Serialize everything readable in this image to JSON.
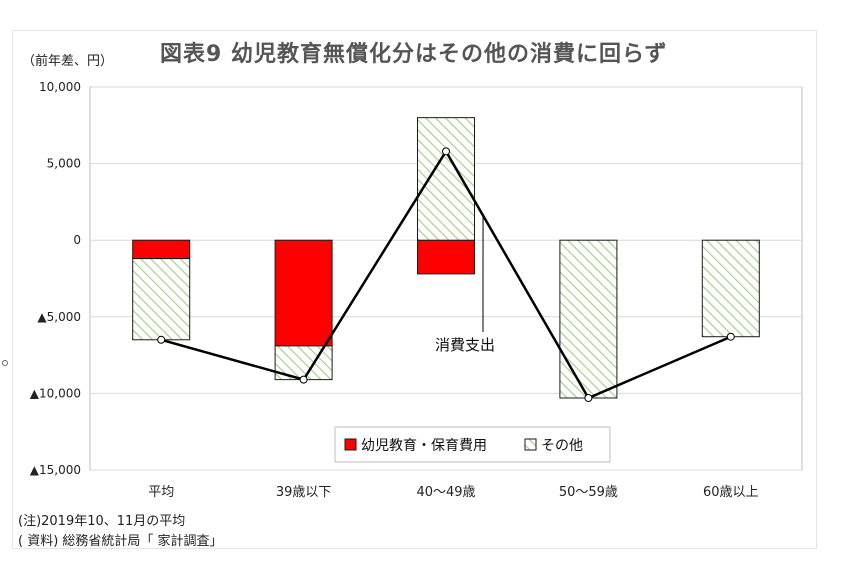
{
  "page": {
    "title": "図表9 幼児教育無償化分はその他の消費に回らず",
    "unit_label": "（前年差、円）",
    "note": "(注)2019年10、11月の平均",
    "source": "( 資料) 総務省統計局「 家計調査」"
  },
  "chart_data": {
    "type": "bar",
    "stacked": true,
    "title": "図表9 幼児教育無償化分はその他の消費に回らず",
    "ylabel": "（前年差、円）",
    "xlabel": "",
    "categories": [
      "平均",
      "39歳以下",
      "40～49歳",
      "50～59歳",
      "60歳以上"
    ],
    "ylim": [
      -15000,
      10000
    ],
    "y_ticks": [
      10000,
      5000,
      0,
      -5000,
      -10000,
      -15000
    ],
    "y_tick_labels": [
      "10,000",
      "5,000",
      "0",
      "▲5,000",
      "▲10,000",
      "▲15,000"
    ],
    "grid": true,
    "legend_position": "bottom-right",
    "series": [
      {
        "name": "幼児教育・保育費用",
        "color": "#ff0000",
        "values": [
          -1200,
          -6900,
          -2200,
          0,
          0
        ]
      },
      {
        "name": "その他",
        "color": "#c8e0b4",
        "pattern": "diagonal-hatch",
        "values": [
          -5300,
          -2200,
          8000,
          -10300,
          -6300
        ]
      }
    ],
    "line": {
      "name": "消費支出",
      "color": "#000000",
      "values": [
        -6500,
        -9100,
        5800,
        -10300,
        -6300
      ]
    },
    "annotations": [
      {
        "text": "消費支出"
      }
    ]
  }
}
